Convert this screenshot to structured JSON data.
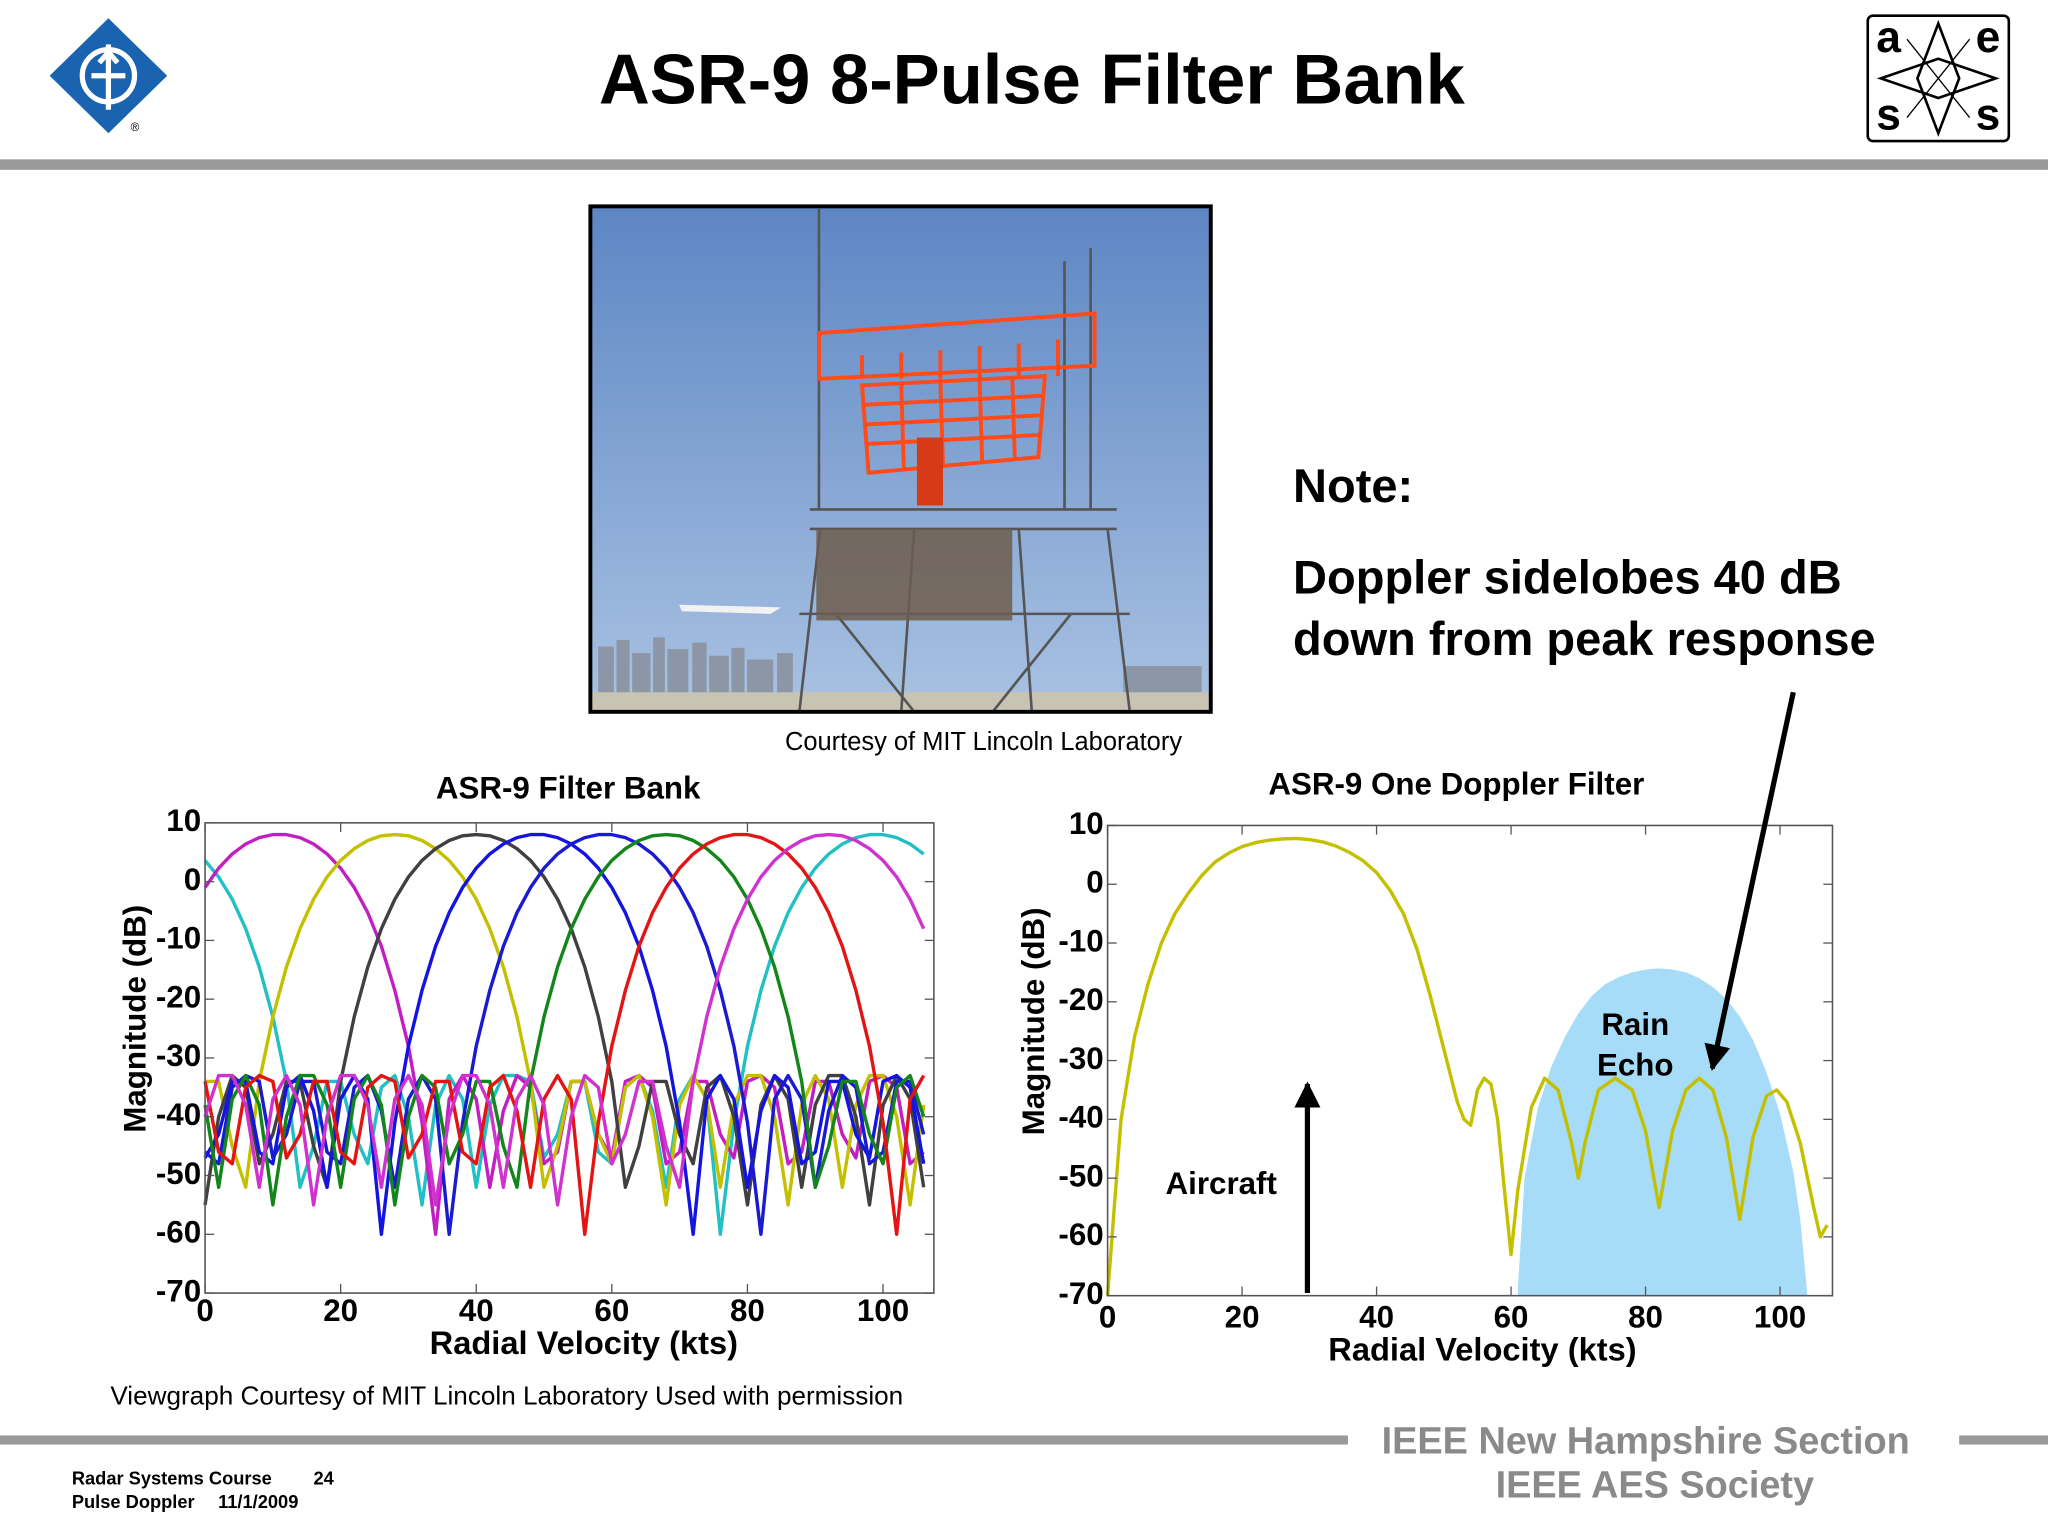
{
  "header": {
    "title": "ASR-9 8-Pulse Filter Bank"
  },
  "logos": {
    "ieee_mark": "®",
    "aes_letters": [
      "a",
      "e",
      "s",
      "s"
    ]
  },
  "photo_credit": "Courtesy of MIT Lincoln Laboratory",
  "note": {
    "heading": "Note:",
    "lines": [
      "Doppler sidelobes 40 dB",
      "down from peak response"
    ]
  },
  "chart_credit": "Viewgraph Courtesy of MIT Lincoln Laboratory Used with permission",
  "footer": {
    "course": "Radar Systems Course",
    "page": 24,
    "topic": "Pulse Doppler",
    "date": "11/1/2009",
    "org": [
      "IEEE New Hampshire Section",
      "IEEE AES Society"
    ]
  },
  "chart_data": [
    {
      "type": "line",
      "title": "ASR-9 Filter Bank",
      "x_label": "Radial Velocity (kts)",
      "y_label": "Magnitude (dB)",
      "xlim": [
        0,
        107.5
      ],
      "xticks": [
        0,
        20,
        40,
        60,
        80,
        100
      ],
      "ylim": [
        -70,
        10
      ],
      "yticks": [
        -70,
        -60,
        -50,
        -40,
        -30,
        -20,
        -10,
        0,
        10
      ],
      "grid": false,
      "x": [
        0,
        2,
        4,
        6,
        8,
        10,
        12,
        14,
        16,
        18,
        20,
        22,
        24,
        26,
        28,
        30,
        32,
        34,
        36,
        38,
        40,
        42,
        44,
        46,
        48,
        50,
        52,
        54,
        56,
        58,
        60,
        62,
        64,
        66,
        68,
        70,
        72,
        74,
        76,
        78,
        80,
        82,
        84,
        86,
        88,
        90,
        92,
        94,
        96,
        98,
        100,
        102,
        104,
        106
      ],
      "series": [
        {
          "color": "#22bfc4",
          "values": [
            3.6,
            0.8,
            -3,
            -8,
            -14.5,
            -23,
            -34,
            -52,
            -45,
            -34,
            -34,
            -43,
            -48,
            -35,
            -33,
            -40,
            -55,
            -38,
            -33,
            -37,
            -52,
            -38,
            -33,
            -33,
            -34,
            -47,
            -43,
            -34,
            -34,
            -46,
            -48,
            -35,
            -33,
            -39,
            -52,
            -37,
            -33,
            -37,
            -60,
            -41,
            -28,
            -18.5,
            -11,
            -5.3,
            -1,
            2.3,
            4.7,
            6.4,
            7.5,
            8,
            8,
            7.5,
            6.4,
            4.7
          ]
        },
        {
          "color": "#c21fc2",
          "values": [
            -1,
            2.3,
            4.7,
            6.4,
            7.5,
            8,
            8,
            7.5,
            6.4,
            4.7,
            2.3,
            -1,
            -5.3,
            -11,
            -18.5,
            -28,
            -41,
            -60,
            -37,
            -33,
            -37,
            -52,
            -39,
            -33,
            -35,
            -48,
            -46,
            -34,
            -34,
            -43,
            -47,
            -34,
            -33,
            -35,
            -48,
            -46,
            -34,
            -34,
            -43,
            -47,
            -34,
            -33,
            -35,
            -48,
            -46,
            -34,
            -34,
            -43,
            -47,
            -34,
            -33,
            -35,
            -48,
            -46
          ]
        },
        {
          "color": "#c4c000",
          "values": [
            -34,
            -34,
            -45,
            -52,
            -34,
            -23,
            -14.5,
            -8,
            -3,
            0.8,
            3.6,
            5.6,
            7,
            7.8,
            8,
            7.8,
            7,
            5.6,
            3.6,
            0.8,
            -3,
            -8,
            -14.5,
            -23,
            -34,
            -52,
            -45,
            -34,
            -34,
            -43,
            -48,
            -35,
            -33,
            -40,
            -55,
            -38,
            -33,
            -37,
            -52,
            -38,
            -33,
            -33,
            -40,
            -55,
            -38,
            -33,
            -37,
            -52,
            -38,
            -33,
            -33,
            -40,
            -55,
            -38
          ]
        },
        {
          "color": "#404040",
          "values": [
            -55,
            -40,
            -33,
            -35,
            -48,
            -43,
            -34,
            -34,
            -45,
            -52,
            -34,
            -23,
            -14.5,
            -8,
            -3,
            0.8,
            3.6,
            5.6,
            7,
            7.8,
            8,
            7.8,
            7,
            5.6,
            3.6,
            0.8,
            -3,
            -8,
            -14.5,
            -23,
            -34,
            -52,
            -45,
            -34,
            -34,
            -43,
            -48,
            -35,
            -33,
            -40,
            -55,
            -38,
            -33,
            -37,
            -52,
            -38,
            -33,
            -33,
            -40,
            -55,
            -38,
            -33,
            -37,
            -52
          ]
        },
        {
          "color": "#1414e0",
          "values": [
            -47,
            -43,
            -34,
            -34,
            -46,
            -48,
            -35,
            -33,
            -39,
            -52,
            -37,
            -33,
            -37,
            -60,
            -41,
            -28,
            -18.5,
            -11,
            -5.3,
            -1,
            2.3,
            4.7,
            6.4,
            7.5,
            8,
            8,
            7.5,
            6.4,
            4.7,
            2.3,
            -1,
            -5.3,
            -11,
            -18.5,
            -28,
            -41,
            -60,
            -37,
            -33,
            -37,
            -52,
            -39,
            -33,
            -35,
            -48,
            -46,
            -34,
            -34,
            -43,
            -47,
            -34,
            -33,
            -35,
            -48
          ]
        },
        {
          "color": "#1a1ad0",
          "values": [
            -46,
            -48,
            -35,
            -33,
            -34,
            -47,
            -43,
            -34,
            -34,
            -46,
            -48,
            -35,
            -33,
            -39,
            -52,
            -37,
            -33,
            -37,
            -60,
            -41,
            -28,
            -18.5,
            -11,
            -5.3,
            -1,
            2.3,
            4.7,
            6.4,
            7.5,
            8,
            8,
            7.5,
            6.4,
            4.7,
            2.3,
            -1,
            -5.3,
            -11,
            -18.5,
            -28,
            -41,
            -60,
            -37,
            -33,
            -37,
            -52,
            -39,
            -33,
            -35,
            -48,
            -46,
            -34,
            -34,
            -43
          ]
        },
        {
          "color": "#12861a",
          "values": [
            -38,
            -52,
            -37,
            -33,
            -38,
            -55,
            -40,
            -33,
            -33,
            -38,
            -52,
            -37,
            -33,
            -38,
            -55,
            -40,
            -33,
            -35,
            -48,
            -43,
            -34,
            -34,
            -45,
            -52,
            -34,
            -23,
            -14.5,
            -8,
            -3,
            0.8,
            3.6,
            5.6,
            7,
            7.8,
            8,
            7.8,
            7,
            5.6,
            3.6,
            0.8,
            -3,
            -8,
            -14.5,
            -23,
            -34,
            -52,
            -45,
            -34,
            -34,
            -43,
            -48,
            -35,
            -33,
            -40
          ]
        },
        {
          "color": "#e41414",
          "values": [
            -34,
            -46,
            -48,
            -35,
            -33,
            -34,
            -47,
            -43,
            -34,
            -34,
            -46,
            -48,
            -35,
            -33,
            -34,
            -47,
            -43,
            -34,
            -34,
            -46,
            -48,
            -35,
            -33,
            -39,
            -52,
            -37,
            -33,
            -37,
            -60,
            -41,
            -28,
            -18.5,
            -11,
            -5.3,
            -1,
            2.3,
            4.7,
            6.4,
            7.5,
            8,
            8,
            7.5,
            6.4,
            4.7,
            2.3,
            -1,
            -5.3,
            -11,
            -18.5,
            -28,
            -41,
            -60,
            -37,
            -33
          ]
        },
        {
          "color": "#d032d0",
          "values": [
            -40,
            -33,
            -33,
            -38,
            -52,
            -37,
            -33,
            -38,
            -55,
            -40,
            -33,
            -33,
            -38,
            -52,
            -37,
            -33,
            -38,
            -55,
            -40,
            -33,
            -33,
            -38,
            -52,
            -37,
            -33,
            -38,
            -55,
            -40,
            -33,
            -35,
            -48,
            -43,
            -34,
            -34,
            -45,
            -52,
            -34,
            -23,
            -14.5,
            -8,
            -3,
            0.8,
            3.6,
            5.6,
            7,
            7.8,
            8,
            7.8,
            7,
            5.6,
            3.6,
            0.8,
            -3,
            -8
          ]
        }
      ]
    },
    {
      "type": "line",
      "title": "ASR-9 One Doppler Filter",
      "x_label": "Radial Velocity (kts)",
      "y_label": "Magnitude (dB)",
      "xlim": [
        0,
        107.8
      ],
      "xticks": [
        0,
        20,
        40,
        60,
        80,
        100
      ],
      "ylim": [
        -70,
        10
      ],
      "yticks": [
        -70,
        -60,
        -50,
        -40,
        -30,
        -20,
        -10,
        0,
        10
      ],
      "grid": false,
      "annotations": [
        "Aircraft",
        [
          "Rain",
          "Echo"
        ]
      ],
      "series": [
        {
          "type": "area",
          "color": "#a6dcf8",
          "x": [
            61,
            62,
            64,
            66,
            68,
            70,
            72,
            74,
            76,
            78,
            80,
            82,
            84,
            86,
            88,
            90,
            92,
            94,
            96,
            98,
            100,
            102,
            103,
            104
          ],
          "values": [
            -69,
            -50,
            -38,
            -31,
            -26,
            -22,
            -19,
            -17,
            -15.8,
            -15,
            -14.5,
            -14.3,
            -14.5,
            -15,
            -16,
            -17.5,
            -19.5,
            -22.5,
            -26.5,
            -32,
            -39,
            -49,
            -57,
            -69
          ]
        },
        {
          "color": "#c4c000",
          "x": [
            0,
            1,
            2,
            4,
            6,
            8,
            10,
            12,
            14,
            16,
            18,
            20,
            22,
            24,
            26,
            28,
            30,
            32,
            34,
            36,
            38,
            40,
            42,
            44,
            46,
            48,
            50,
            52,
            53,
            54,
            55,
            56,
            57,
            58,
            59,
            60,
            61,
            63,
            65,
            67,
            69,
            70,
            71,
            73,
            75.5,
            78,
            80,
            82,
            84,
            86,
            88,
            90,
            92,
            94,
            96,
            98,
            99.5,
            101,
            103,
            105,
            106,
            107
          ],
          "values": [
            -70,
            -55,
            -40,
            -26,
            -17,
            -10,
            -5,
            -1.5,
            1.5,
            3.8,
            5.3,
            6.4,
            7.1,
            7.5,
            7.7,
            7.8,
            7.6,
            7.2,
            6.5,
            5.4,
            4,
            2,
            -1,
            -5,
            -11,
            -19,
            -28,
            -37,
            -40,
            -41,
            -35,
            -33,
            -34,
            -40,
            -52,
            -63,
            -52,
            -38,
            -33,
            -35,
            -44,
            -50,
            -44,
            -35,
            -33,
            -35,
            -42,
            -55,
            -42,
            -35,
            -33,
            -35,
            -43,
            -57,
            -43,
            -36,
            -35,
            -37,
            -44,
            -55,
            -60,
            -58
          ]
        }
      ]
    }
  ]
}
